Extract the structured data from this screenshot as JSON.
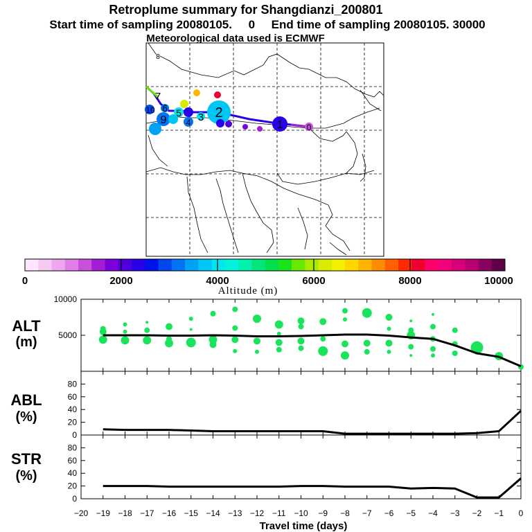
{
  "header": {
    "title": "Retroplume summary for Shangdianzi_200801",
    "sampling": "Start time of sampling 20080105.     0     End time of sampling 20080105. 30000",
    "met": "Meteorological data used is ECMWF"
  },
  "colorbar": {
    "label": "Altitude (m)",
    "tick_labels": [
      "0",
      "2000",
      "4000",
      "6000",
      "8000",
      "10000"
    ],
    "colors": [
      "#ffe5ff",
      "#f5c8f5",
      "#eea6ee",
      "#e07fe6",
      "#c94fdc",
      "#a21ed6",
      "#7a00dc",
      "#4f00dd",
      "#2a00e6",
      "#0012ec",
      "#0048ee",
      "#0074f2",
      "#00a2f6",
      "#00c6f4",
      "#00e6ef",
      "#00f3da",
      "#00f0b0",
      "#00e67c",
      "#00e04a",
      "#19e41a",
      "#66e800",
      "#aaea00",
      "#d6ec00",
      "#f2f000",
      "#ffd700",
      "#ffb400",
      "#ff8c00",
      "#ff6000",
      "#ff2a00",
      "#f00030",
      "#ff006c",
      "#f2007e",
      "#d8007a",
      "#b80070",
      "#8c0060",
      "#600048"
    ]
  },
  "map": {
    "numbers": [
      "8",
      "7",
      "6",
      "5",
      "4",
      "3",
      "2",
      "1",
      "0",
      "9",
      "10"
    ]
  },
  "chart_data": [
    {
      "type": "scatter",
      "name": "ALT",
      "ylabel": "ALT",
      "yunit": "(m)",
      "xlabel": "Travel time (days)",
      "xlim": [
        -20,
        0
      ],
      "ylim": [
        0,
        10000
      ],
      "yticks": [
        5000,
        10000
      ],
      "x_ticks": [
        -20,
        -19,
        -18,
        -17,
        -16,
        -15,
        -14,
        -13,
        -12,
        -11,
        -10,
        -9,
        -8,
        -7,
        -6,
        -5,
        -4,
        -3,
        -2,
        -1,
        0
      ],
      "mean_line": {
        "x": [
          -19,
          -18,
          -17,
          -16,
          -15,
          -14,
          -13,
          -12,
          -11,
          -10,
          -9,
          -8,
          -7,
          -6,
          -5,
          -4,
          -3,
          -2,
          -1,
          0
        ],
        "y": [
          5000,
          5000,
          5000,
          4950,
          4950,
          5000,
          4950,
          4850,
          4850,
          4900,
          5000,
          5100,
          5100,
          4950,
          4700,
          4500,
          3600,
          2500,
          2000,
          700
        ]
      },
      "clusters": [
        {
          "x": -19,
          "y": 5900,
          "s": 4
        },
        {
          "x": -19,
          "y": 5500,
          "s": 5
        },
        {
          "x": -19,
          "y": 4400,
          "s": 6
        },
        {
          "x": -18,
          "y": 6500,
          "s": 3
        },
        {
          "x": -18,
          "y": 5500,
          "s": 3
        },
        {
          "x": -18,
          "y": 4300,
          "s": 6
        },
        {
          "x": -17,
          "y": 6800,
          "s": 2
        },
        {
          "x": -17,
          "y": 5700,
          "s": 4
        },
        {
          "x": -17,
          "y": 4300,
          "s": 6
        },
        {
          "x": -16,
          "y": 6200,
          "s": 5
        },
        {
          "x": -16,
          "y": 4500,
          "s": 4
        },
        {
          "x": -16,
          "y": 3900,
          "s": 6
        },
        {
          "x": -15,
          "y": 7300,
          "s": 3
        },
        {
          "x": -15,
          "y": 5800,
          "s": 2
        },
        {
          "x": -15,
          "y": 4000,
          "s": 7
        },
        {
          "x": -14,
          "y": 8000,
          "s": 4
        },
        {
          "x": -14,
          "y": 4400,
          "s": 6
        },
        {
          "x": -14,
          "y": 3700,
          "s": 5
        },
        {
          "x": -13,
          "y": 8600,
          "s": 4
        },
        {
          "x": -13,
          "y": 6000,
          "s": 4
        },
        {
          "x": -13,
          "y": 4400,
          "s": 5
        },
        {
          "x": -13,
          "y": 2800,
          "s": 3
        },
        {
          "x": -12,
          "y": 7300,
          "s": 6
        },
        {
          "x": -12,
          "y": 4200,
          "s": 5
        },
        {
          "x": -12,
          "y": 2700,
          "s": 3
        },
        {
          "x": -11,
          "y": 6500,
          "s": 6
        },
        {
          "x": -11,
          "y": 5200,
          "s": 3
        },
        {
          "x": -11,
          "y": 4000,
          "s": 5
        },
        {
          "x": -11,
          "y": 3000,
          "s": 4
        },
        {
          "x": -10,
          "y": 7000,
          "s": 5
        },
        {
          "x": -10,
          "y": 6200,
          "s": 4
        },
        {
          "x": -10,
          "y": 4200,
          "s": 5
        },
        {
          "x": -10,
          "y": 3200,
          "s": 4
        },
        {
          "x": -9,
          "y": 6900,
          "s": 5
        },
        {
          "x": -9,
          "y": 4500,
          "s": 4
        },
        {
          "x": -9,
          "y": 2800,
          "s": 7
        },
        {
          "x": -8,
          "y": 8400,
          "s": 4
        },
        {
          "x": -8,
          "y": 7200,
          "s": 3
        },
        {
          "x": -8,
          "y": 3800,
          "s": 5
        },
        {
          "x": -8,
          "y": 2200,
          "s": 6
        },
        {
          "x": -7,
          "y": 8100,
          "s": 7
        },
        {
          "x": -7,
          "y": 3900,
          "s": 5
        },
        {
          "x": -7,
          "y": 2700,
          "s": 4
        },
        {
          "x": -6,
          "y": 7500,
          "s": 5
        },
        {
          "x": -6,
          "y": 5900,
          "s": 3
        },
        {
          "x": -6,
          "y": 3900,
          "s": 5
        },
        {
          "x": -6,
          "y": 2700,
          "s": 3
        },
        {
          "x": -5,
          "y": 7000,
          "s": 2
        },
        {
          "x": -5,
          "y": 5700,
          "s": 4
        },
        {
          "x": -5,
          "y": 5000,
          "s": 6
        },
        {
          "x": -5,
          "y": 3400,
          "s": 4
        },
        {
          "x": -5,
          "y": 2200,
          "s": 2
        },
        {
          "x": -4,
          "y": 7900,
          "s": 2
        },
        {
          "x": -4,
          "y": 6200,
          "s": 4
        },
        {
          "x": -4,
          "y": 4500,
          "s": 4
        },
        {
          "x": -4,
          "y": 3100,
          "s": 4
        },
        {
          "x": -4,
          "y": 2200,
          "s": 3
        },
        {
          "x": -3,
          "y": 5700,
          "s": 4
        },
        {
          "x": -3,
          "y": 3800,
          "s": 4
        },
        {
          "x": -3,
          "y": 2500,
          "s": 4
        },
        {
          "x": -2,
          "y": 3300,
          "s": 9
        },
        {
          "x": -2,
          "y": 2800,
          "s": 5
        },
        {
          "x": -1,
          "y": 2100,
          "s": 6
        },
        {
          "x": 0,
          "y": 600,
          "s": 4
        }
      ]
    },
    {
      "type": "line",
      "name": "ABL",
      "ylabel": "ABL",
      "yunit": "(%)",
      "ylim": [
        0,
        100
      ],
      "yticks": [
        0,
        20,
        40,
        60,
        80
      ],
      "x": [
        -19,
        -18,
        -17,
        -16,
        -15,
        -14,
        -13,
        -12,
        -11,
        -10,
        -9,
        -8,
        -7,
        -6,
        -5,
        -4,
        -3,
        -2,
        -1,
        0
      ],
      "y": [
        9,
        8,
        8,
        8,
        7,
        6,
        6,
        6,
        6,
        6,
        6,
        2,
        2,
        2,
        2,
        2,
        2,
        3,
        6,
        38
      ]
    },
    {
      "type": "line",
      "name": "STR",
      "ylabel": "STR",
      "yunit": "(%)",
      "ylim": [
        0,
        100
      ],
      "yticks": [
        0,
        20,
        40,
        60,
        80
      ],
      "x": [
        -19,
        -18,
        -17,
        -16,
        -15,
        -14,
        -13,
        -12,
        -11,
        -10,
        -9,
        -8,
        -7,
        -6,
        -5,
        -4,
        -3,
        -2,
        -1,
        0
      ],
      "y": [
        20,
        20,
        20,
        19,
        19,
        19,
        19,
        19,
        19,
        20,
        20,
        19,
        19,
        19,
        16,
        17,
        16,
        2,
        2,
        32
      ]
    }
  ]
}
